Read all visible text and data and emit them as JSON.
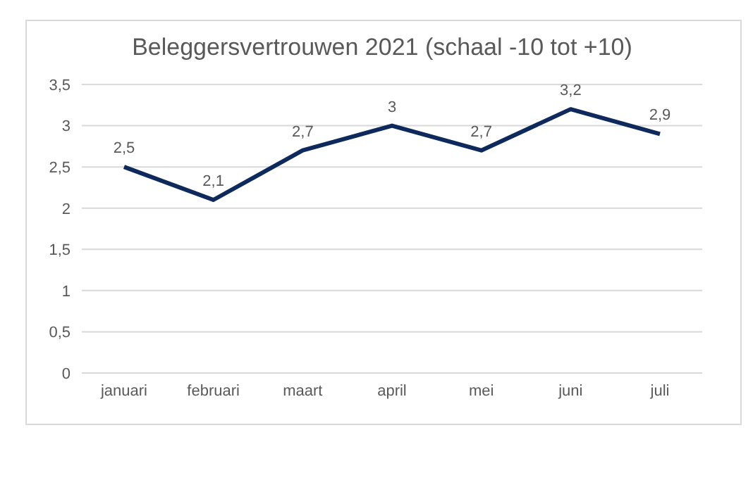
{
  "chart_data": {
    "type": "line",
    "title": "Beleggersvertrouwen 2021 (schaal -10 tot +10)",
    "categories": [
      "januari",
      "februari",
      "maart",
      "april",
      "mei",
      "juni",
      "juli"
    ],
    "series": [
      {
        "color": "#0e2a5c",
        "values": [
          2.5,
          2.1,
          2.7,
          3,
          2.7,
          3.2,
          2.9
        ],
        "value_labels": [
          "2,5",
          "2,1",
          "2,7",
          "3",
          "2,7",
          "3,2",
          "2,9"
        ]
      }
    ],
    "ylim": [
      0,
      3.5
    ],
    "yticks": [
      {
        "value": 0,
        "label": "0"
      },
      {
        "value": 0.5,
        "label": "0,5"
      },
      {
        "value": 1,
        "label": "1"
      },
      {
        "value": 1.5,
        "label": "1,5"
      },
      {
        "value": 2,
        "label": "2"
      },
      {
        "value": 2.5,
        "label": "2,5"
      },
      {
        "value": 3,
        "label": "3"
      },
      {
        "value": 3.5,
        "label": "3,5"
      }
    ],
    "grid": "y",
    "marker": "none",
    "line_style": "solid"
  }
}
